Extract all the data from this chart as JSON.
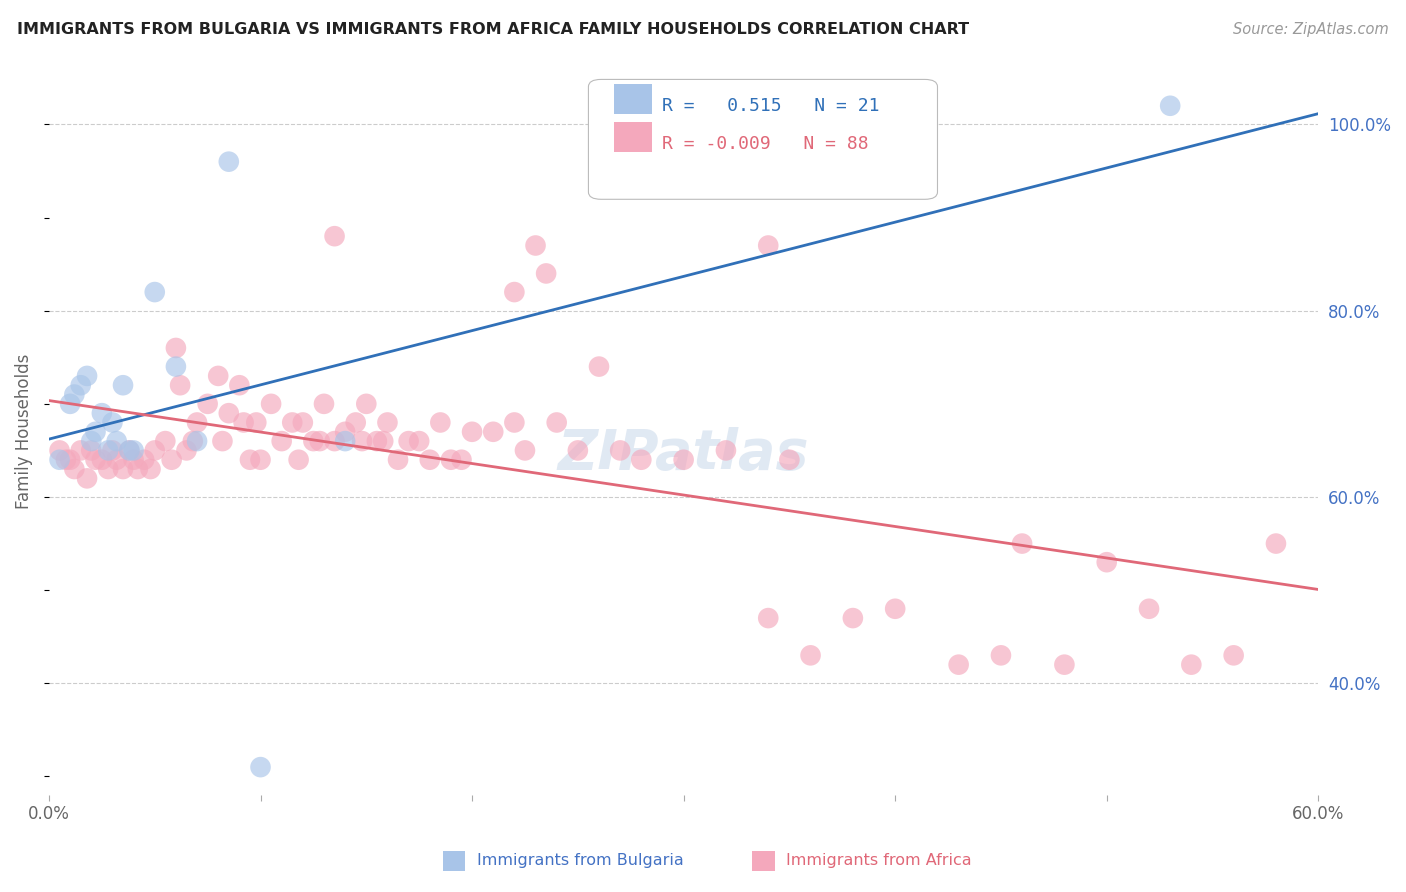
{
  "title": "IMMIGRANTS FROM BULGARIA VS IMMIGRANTS FROM AFRICA FAMILY HOUSEHOLDS CORRELATION CHART",
  "source": "Source: ZipAtlas.com",
  "ylabel": "Family Households",
  "xlim": [
    0.0,
    0.6
  ],
  "ylim": [
    0.28,
    1.06
  ],
  "x_tick_positions": [
    0.0,
    0.1,
    0.2,
    0.3,
    0.4,
    0.5,
    0.6
  ],
  "x_tick_labels": [
    "0.0%",
    "",
    "",
    "",
    "",
    "",
    "60.0%"
  ],
  "y_ticks_right": [
    1.0,
    0.8,
    0.6,
    0.4
  ],
  "y_tick_labels_right": [
    "100.0%",
    "80.0%",
    "60.0%",
    "40.0%"
  ],
  "legend_bulgaria_r": "0.515",
  "legend_bulgaria_n": "21",
  "legend_africa_r": "-0.009",
  "legend_africa_n": "88",
  "blue_color": "#a8c4e8",
  "pink_color": "#f4a8bc",
  "blue_line_color": "#3070b8",
  "pink_line_color": "#e06878",
  "bulgaria_scatter_x": [
    0.005,
    0.01,
    0.012,
    0.015,
    0.018,
    0.02,
    0.022,
    0.025,
    0.028,
    0.03,
    0.032,
    0.035,
    0.038,
    0.04,
    0.05,
    0.06,
    0.07,
    0.085,
    0.1,
    0.14,
    0.53
  ],
  "bulgaria_scatter_y": [
    0.64,
    0.7,
    0.71,
    0.72,
    0.73,
    0.66,
    0.67,
    0.69,
    0.65,
    0.68,
    0.66,
    0.72,
    0.65,
    0.65,
    0.82,
    0.74,
    0.66,
    0.96,
    0.31,
    0.66,
    1.02
  ],
  "africa_scatter_x": [
    0.005,
    0.008,
    0.01,
    0.012,
    0.015,
    0.018,
    0.02,
    0.022,
    0.025,
    0.028,
    0.03,
    0.032,
    0.035,
    0.038,
    0.04,
    0.042,
    0.045,
    0.048,
    0.05,
    0.055,
    0.058,
    0.06,
    0.062,
    0.065,
    0.068,
    0.07,
    0.075,
    0.08,
    0.082,
    0.085,
    0.09,
    0.092,
    0.095,
    0.098,
    0.1,
    0.105,
    0.11,
    0.115,
    0.118,
    0.12,
    0.125,
    0.128,
    0.13,
    0.135,
    0.14,
    0.145,
    0.148,
    0.15,
    0.155,
    0.158,
    0.16,
    0.165,
    0.17,
    0.175,
    0.18,
    0.185,
    0.19,
    0.195,
    0.2,
    0.21,
    0.22,
    0.225,
    0.23,
    0.235,
    0.24,
    0.25,
    0.26,
    0.27,
    0.28,
    0.3,
    0.32,
    0.34,
    0.35,
    0.36,
    0.38,
    0.4,
    0.43,
    0.45,
    0.46,
    0.48,
    0.5,
    0.52,
    0.54,
    0.56,
    0.58,
    0.135,
    0.22,
    0.34
  ],
  "africa_scatter_y": [
    0.65,
    0.64,
    0.64,
    0.63,
    0.65,
    0.62,
    0.65,
    0.64,
    0.64,
    0.63,
    0.65,
    0.64,
    0.63,
    0.65,
    0.64,
    0.63,
    0.64,
    0.63,
    0.65,
    0.66,
    0.64,
    0.76,
    0.72,
    0.65,
    0.66,
    0.68,
    0.7,
    0.73,
    0.66,
    0.69,
    0.72,
    0.68,
    0.64,
    0.68,
    0.64,
    0.7,
    0.66,
    0.68,
    0.64,
    0.68,
    0.66,
    0.66,
    0.7,
    0.66,
    0.67,
    0.68,
    0.66,
    0.7,
    0.66,
    0.66,
    0.68,
    0.64,
    0.66,
    0.66,
    0.64,
    0.68,
    0.64,
    0.64,
    0.67,
    0.67,
    0.68,
    0.65,
    0.87,
    0.84,
    0.68,
    0.65,
    0.74,
    0.65,
    0.64,
    0.64,
    0.65,
    0.47,
    0.64,
    0.43,
    0.47,
    0.48,
    0.42,
    0.43,
    0.55,
    0.42,
    0.53,
    0.48,
    0.42,
    0.43,
    0.55,
    0.88,
    0.82,
    0.87
  ],
  "watermark": "ZIPatlas",
  "bg_color": "#ffffff",
  "grid_color": "#cccccc"
}
